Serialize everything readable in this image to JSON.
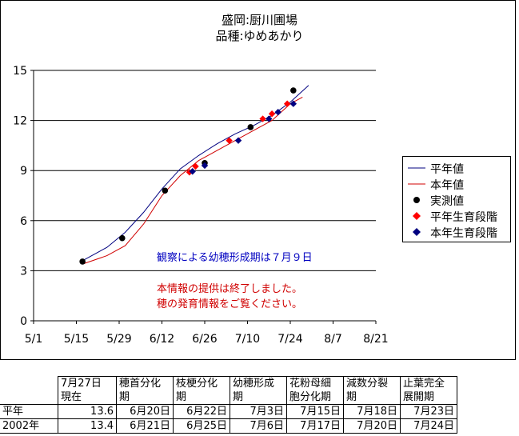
{
  "title": {
    "line1": "盛岡:厨川圃場",
    "line2": "品種:ゆめあかり"
  },
  "notes": {
    "heading_estimate": "観察による幼穂形成期は７月９日",
    "end_notice_1": "本情報の提供は終了しました。",
    "end_notice_2": "穂の発育情報をご覧ください。"
  },
  "legend": {
    "items": [
      {
        "label": "平年値",
        "kind": "line",
        "color": "#000080"
      },
      {
        "label": "本年値",
        "kind": "line",
        "color": "#d00000"
      },
      {
        "label": "実測値",
        "kind": "circle",
        "color": "#000000"
      },
      {
        "label": "平年生育段階",
        "kind": "diamond",
        "color": "#ff0000"
      },
      {
        "label": "本年生育段階",
        "kind": "diamond",
        "color": "#000080"
      }
    ]
  },
  "chart_data": {
    "type": "line",
    "x_ticks": [
      "5/1",
      "5/15",
      "5/29",
      "6/12",
      "6/26",
      "7/10",
      "7/24",
      "8/7",
      "8/21"
    ],
    "x_tick_day": [
      0,
      14,
      28,
      42,
      56,
      70,
      84,
      98,
      112
    ],
    "y_ticks": [
      "0",
      "3",
      "6",
      "9",
      "12",
      "15"
    ],
    "ylim": [
      0,
      15
    ],
    "xlim_day": [
      0,
      112
    ],
    "grid": "horizontal",
    "legend_position": "right",
    "series": [
      {
        "name": "平年値",
        "kind": "line",
        "color": "#000080",
        "x_day": [
          16,
          24,
          30,
          36,
          42,
          48,
          54,
          60,
          66,
          72,
          78,
          84,
          90
        ],
        "values": [
          3.6,
          4.4,
          5.3,
          6.5,
          7.9,
          9.1,
          9.9,
          10.6,
          11.2,
          11.7,
          12.3,
          13.1,
          14.1
        ]
      },
      {
        "name": "本年値",
        "kind": "line",
        "color": "#d00000",
        "x_day": [
          16,
          24,
          30,
          36,
          42,
          48,
          54,
          60,
          66,
          72,
          78,
          84,
          88
        ],
        "values": [
          3.4,
          3.9,
          4.5,
          5.8,
          7.5,
          8.7,
          9.6,
          10.2,
          10.8,
          11.4,
          12.0,
          13.0,
          13.4
        ]
      },
      {
        "name": "実測値",
        "kind": "circle",
        "color": "#000000",
        "x_day": [
          16,
          29,
          43,
          56,
          71,
          85
        ],
        "values": [
          3.55,
          4.95,
          7.8,
          9.45,
          11.6,
          13.8
        ]
      },
      {
        "name": "平年生育段階",
        "kind": "diamond",
        "color": "#ff0000",
        "x_day": [
          51,
          53,
          64,
          75,
          78,
          83
        ],
        "values": [
          8.9,
          9.25,
          10.8,
          12.1,
          12.4,
          13.0
        ]
      },
      {
        "name": "本年生育段階",
        "kind": "diamond",
        "color": "#000080",
        "x_day": [
          52,
          56,
          67,
          77,
          80,
          85
        ],
        "values": [
          8.95,
          9.3,
          10.8,
          12.1,
          12.5,
          13.0
        ]
      }
    ]
  },
  "table": {
    "headers": [
      "",
      "7月27日\n現在",
      "穂首分化\n期",
      "枝梗分化\n期",
      "幼穂形成\n期",
      "花粉母細\n胞分化期",
      "減数分裂\n期",
      "止葉完全\n展開期"
    ],
    "rows": [
      [
        "平年",
        "13.6",
        "6月20日",
        "6月22日",
        "7月3日",
        "7月15日",
        "7月18日",
        "7月23日"
      ],
      [
        "2002年",
        "13.4",
        "6月21日",
        "6月25日",
        "7月6日",
        "7月17日",
        "7月20日",
        "7月24日"
      ]
    ]
  }
}
